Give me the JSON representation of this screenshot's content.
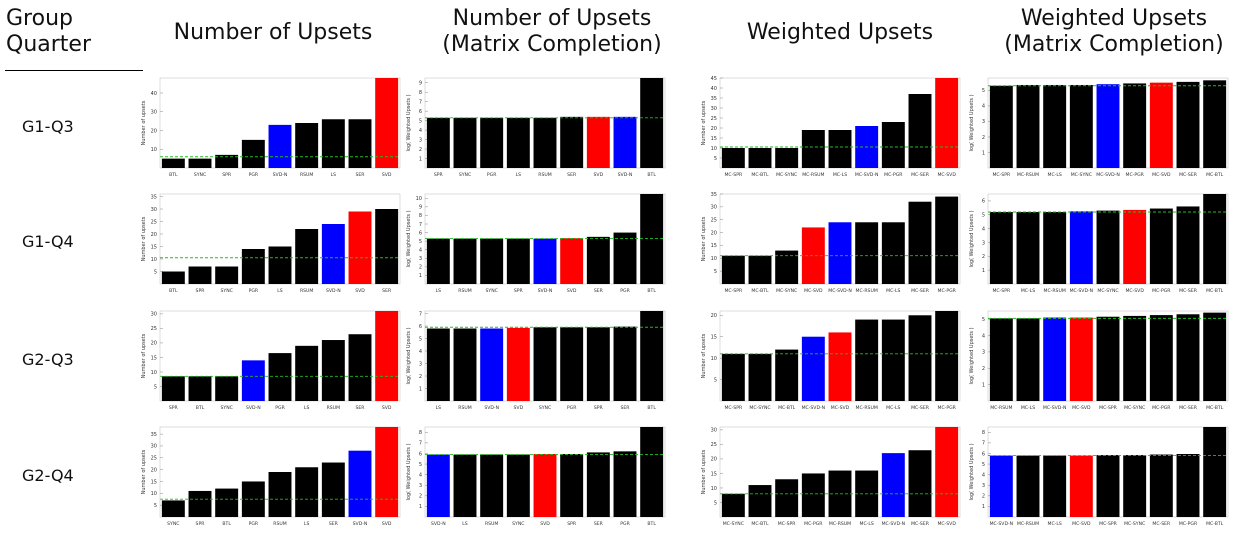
{
  "header": {
    "corner_line1": "Group",
    "corner_line2": "Quarter",
    "columns": [
      {
        "line1": "Number of Upsets",
        "line2": ""
      },
      {
        "line1": "Number of Upsets",
        "line2": "(Matrix Completion)"
      },
      {
        "line1": "Weighted Upsets",
        "line2": ""
      },
      {
        "line1": "Weighted Upsets",
        "line2": "(Matrix Completion)"
      }
    ]
  },
  "rows": [
    "G1-Q3",
    "G1-Q4",
    "G2-Q3",
    "G2-Q4"
  ],
  "colors": {
    "bar": "#000000",
    "highlight_red": "#ff0000",
    "highlight_blue": "#0000ff",
    "reference_line": "#22bb22"
  },
  "chart_data": [
    {
      "type": "bar",
      "row": "G1-Q3",
      "col": 0,
      "ylabel": "Number of upsets",
      "ylim": [
        0,
        48
      ],
      "yticks": [
        10,
        20,
        30,
        40
      ],
      "ref": 6,
      "categories": [
        "BTL",
        "SYNC",
        "SPR",
        "PGR",
        "SVD-N",
        "RSUM",
        "LS",
        "SER",
        "SVD"
      ],
      "values": [
        5,
        5,
        7,
        15,
        23,
        24,
        26,
        26,
        48
      ],
      "colors": [
        "k",
        "k",
        "k",
        "k",
        "b",
        "k",
        "k",
        "k",
        "r"
      ]
    },
    {
      "type": "bar",
      "row": "G1-Q3",
      "col": 1,
      "ylabel": "log( Weighted Upsets )",
      "ylim": [
        0,
        9.5
      ],
      "yticks": [
        1,
        2,
        3,
        4,
        5,
        6,
        7,
        8,
        9
      ],
      "ref": 5.3,
      "categories": [
        "SPR",
        "SYNC",
        "PGR",
        "LS",
        "RSUM",
        "SER",
        "SVD",
        "SVD-N",
        "BTL"
      ],
      "values": [
        5.3,
        5.3,
        5.3,
        5.3,
        5.3,
        5.4,
        5.4,
        5.4,
        9.5
      ],
      "colors": [
        "k",
        "k",
        "k",
        "k",
        "k",
        "k",
        "r",
        "b",
        "k"
      ]
    },
    {
      "type": "bar",
      "row": "G1-Q3",
      "col": 2,
      "ylabel": "Number of upsets",
      "ylim": [
        0,
        45
      ],
      "yticks": [
        5,
        10,
        15,
        20,
        25,
        30,
        35,
        40,
        45
      ],
      "ref": 10.5,
      "categories": [
        "MC-SPR",
        "MC-BTL",
        "MC-SYNC",
        "MC-RSUM",
        "MC-LS",
        "MC-SVD-N",
        "MC-PGR",
        "MC-SER",
        "MC-SVD"
      ],
      "values": [
        10,
        10,
        10,
        19,
        19,
        21,
        23,
        37,
        45
      ],
      "colors": [
        "k",
        "k",
        "k",
        "k",
        "k",
        "b",
        "k",
        "k",
        "r"
      ]
    },
    {
      "type": "bar",
      "row": "G1-Q3",
      "col": 3,
      "ylabel": "log( Weighted Upsets )",
      "ylim": [
        0,
        5.8
      ],
      "yticks": [
        1,
        2,
        3,
        4,
        5
      ],
      "ref": 5.3,
      "categories": [
        "MC-SPR",
        "MC-RSUM",
        "MC-LS",
        "MC-SYNC",
        "MC-SVD-N",
        "MC-PGR",
        "MC-SVD",
        "MC-SER",
        "MC-BTL"
      ],
      "values": [
        5.3,
        5.35,
        5.35,
        5.35,
        5.4,
        5.45,
        5.5,
        5.55,
        5.65
      ],
      "colors": [
        "k",
        "k",
        "k",
        "k",
        "b",
        "k",
        "r",
        "k",
        "k"
      ]
    },
    {
      "type": "bar",
      "row": "G1-Q4",
      "col": 0,
      "ylabel": "Number of upsets",
      "ylim": [
        0,
        36
      ],
      "yticks": [
        5,
        10,
        15,
        20,
        25,
        30,
        35
      ],
      "ref": 10.5,
      "categories": [
        "BTL",
        "SPR",
        "SYNC",
        "PGR",
        "LS",
        "RSUM",
        "SVD-N",
        "SVD",
        "SER"
      ],
      "values": [
        5,
        7,
        7,
        14,
        15,
        22,
        24,
        29,
        30
      ],
      "colors": [
        "k",
        "k",
        "k",
        "k",
        "k",
        "k",
        "b",
        "r",
        "k"
      ]
    },
    {
      "type": "bar",
      "row": "G1-Q4",
      "col": 1,
      "ylabel": "log( Weighted Upsets )",
      "ylim": [
        0,
        10.5
      ],
      "yticks": [
        1,
        2,
        3,
        4,
        5,
        6,
        7,
        8,
        9,
        10
      ],
      "ref": 5.3,
      "categories": [
        "LS",
        "RSUM",
        "SYNC",
        "SPR",
        "SVD-N",
        "SVD",
        "SER",
        "PGR",
        "BTL"
      ],
      "values": [
        5.3,
        5.3,
        5.3,
        5.3,
        5.3,
        5.35,
        5.5,
        6,
        10.5
      ],
      "colors": [
        "k",
        "k",
        "k",
        "k",
        "b",
        "r",
        "k",
        "k",
        "k"
      ]
    },
    {
      "type": "bar",
      "row": "G1-Q4",
      "col": 2,
      "ylabel": "Number of upsets",
      "ylim": [
        0,
        35
      ],
      "yticks": [
        5,
        10,
        15,
        20,
        25,
        30,
        35
      ],
      "ref": 11,
      "categories": [
        "MC-SPR",
        "MC-BTL",
        "MC-SYNC",
        "MC-SVD",
        "MC-SVD-N",
        "MC-RSUM",
        "MC-LS",
        "MC-SER",
        "MC-PGR"
      ],
      "values": [
        11,
        11,
        13,
        22,
        24,
        24,
        24,
        32,
        34
      ],
      "colors": [
        "k",
        "k",
        "k",
        "r",
        "b",
        "k",
        "k",
        "k",
        "k"
      ]
    },
    {
      "type": "bar",
      "row": "G1-Q4",
      "col": 3,
      "ylabel": "log( Weighted Upsets )",
      "ylim": [
        0,
        6.5
      ],
      "yticks": [
        1,
        2,
        3,
        4,
        5,
        6
      ],
      "ref": 5.2,
      "categories": [
        "MC-SPR",
        "MC-LS",
        "MC-RSUM",
        "MC-SVD-N",
        "MC-SYNC",
        "MC-SVD",
        "MC-PGR",
        "MC-SER",
        "MC-BTL"
      ],
      "values": [
        5.2,
        5.2,
        5.2,
        5.25,
        5.3,
        5.35,
        5.45,
        5.6,
        6.5
      ],
      "colors": [
        "k",
        "k",
        "k",
        "b",
        "k",
        "r",
        "k",
        "k",
        "k"
      ]
    },
    {
      "type": "bar",
      "row": "G2-Q3",
      "col": 0,
      "ylabel": "Number of upsets",
      "ylim": [
        0,
        31
      ],
      "yticks": [
        5,
        10,
        15,
        20,
        25,
        30
      ],
      "ref": 8.5,
      "categories": [
        "SPR",
        "BTL",
        "SYNC",
        "SVD-N",
        "PGR",
        "LS",
        "RSUM",
        "SER",
        "SVD"
      ],
      "values": [
        8.5,
        8.5,
        8.5,
        14,
        16.5,
        19,
        21,
        23,
        31
      ],
      "colors": [
        "k",
        "k",
        "k",
        "b",
        "k",
        "k",
        "k",
        "k",
        "r"
      ]
    },
    {
      "type": "bar",
      "row": "G2-Q3",
      "col": 1,
      "ylabel": "log( Weighted Upsets )",
      "ylim": [
        0,
        7.2
      ],
      "yticks": [
        1,
        2,
        3,
        4,
        5,
        6,
        7
      ],
      "ref": 5.9,
      "categories": [
        "LS",
        "RSUM",
        "SVD-N",
        "SVD",
        "SYNC",
        "PGR",
        "SPR",
        "SER",
        "BTL"
      ],
      "values": [
        5.8,
        5.8,
        5.8,
        5.85,
        5.9,
        5.9,
        5.9,
        5.95,
        7.2
      ],
      "colors": [
        "k",
        "k",
        "b",
        "r",
        "k",
        "k",
        "k",
        "k",
        "k"
      ]
    },
    {
      "type": "bar",
      "row": "G2-Q3",
      "col": 2,
      "ylabel": "Number of upsets",
      "ylim": [
        0,
        21
      ],
      "yticks": [
        5,
        10,
        15,
        20
      ],
      "ref": 11,
      "categories": [
        "MC-SPR",
        "MC-SYNC",
        "MC-BTL",
        "MC-SVD-N",
        "MC-SVD",
        "MC-RSUM",
        "MC-LS",
        "MC-SER",
        "MC-PGR"
      ],
      "values": [
        11,
        11,
        12,
        15,
        16,
        19,
        19,
        20,
        21
      ],
      "colors": [
        "k",
        "k",
        "k",
        "b",
        "r",
        "k",
        "k",
        "k",
        "k"
      ]
    },
    {
      "type": "bar",
      "row": "G2-Q3",
      "col": 3,
      "ylabel": "log( Weighted Upsets )",
      "ylim": [
        0,
        5.5
      ],
      "yticks": [
        1,
        2,
        3,
        4,
        5
      ],
      "ref": 5.05,
      "categories": [
        "MC-RSUM",
        "MC-LS",
        "MC-SVD-N",
        "MC-SVD",
        "MC-SPR",
        "MC-SYNC",
        "MC-PGR",
        "MC-SER",
        "MC-BTL"
      ],
      "values": [
        5.05,
        5.05,
        5.1,
        5.1,
        5.15,
        5.2,
        5.25,
        5.3,
        5.4
      ],
      "colors": [
        "k",
        "k",
        "b",
        "r",
        "k",
        "k",
        "k",
        "k",
        "k"
      ]
    },
    {
      "type": "bar",
      "row": "G2-Q4",
      "col": 0,
      "ylabel": "Number of upsets",
      "ylim": [
        0,
        38
      ],
      "yticks": [
        5,
        10,
        15,
        20,
        25,
        30,
        35
      ],
      "ref": 7.5,
      "categories": [
        "SYNC",
        "SPR",
        "BTL",
        "PGR",
        "RSUM",
        "LS",
        "SER",
        "SVD-N",
        "SVD"
      ],
      "values": [
        7,
        11,
        12,
        15,
        19,
        21,
        23,
        28,
        38
      ],
      "colors": [
        "k",
        "k",
        "k",
        "k",
        "k",
        "k",
        "k",
        "b",
        "r"
      ]
    },
    {
      "type": "bar",
      "row": "G2-Q4",
      "col": 1,
      "ylabel": "log( Weighted Upsets )",
      "ylim": [
        0,
        8.5
      ],
      "yticks": [
        1,
        2,
        3,
        4,
        5,
        6,
        7,
        8
      ],
      "ref": 5.9,
      "categories": [
        "SVD-N",
        "LS",
        "RSUM",
        "SYNC",
        "SVD",
        "SPR",
        "SER",
        "PGR",
        "BTL"
      ],
      "values": [
        5.9,
        5.9,
        5.9,
        5.9,
        5.95,
        5.95,
        6.1,
        6.2,
        8.5
      ],
      "colors": [
        "b",
        "k",
        "k",
        "k",
        "r",
        "k",
        "k",
        "k",
        "k"
      ]
    },
    {
      "type": "bar",
      "row": "G2-Q4",
      "col": 2,
      "ylabel": "Number of upsets",
      "ylim": [
        0,
        31
      ],
      "yticks": [
        5,
        10,
        15,
        20,
        25,
        30
      ],
      "ref": 8,
      "categories": [
        "MC-SYNC",
        "MC-BTL",
        "MC-SPR",
        "MC-PGR",
        "MC-RSUM",
        "MC-LS",
        "MC-SVD-N",
        "MC-SER",
        "MC-SVD"
      ],
      "values": [
        8,
        11,
        13,
        15,
        16,
        16,
        22,
        23,
        31
      ],
      "colors": [
        "k",
        "k",
        "k",
        "k",
        "k",
        "k",
        "b",
        "k",
        "r"
      ]
    },
    {
      "type": "bar",
      "row": "G2-Q4",
      "col": 3,
      "ylabel": "log( Weighted Upsets )",
      "ylim": [
        0,
        8.5
      ],
      "yticks": [
        1,
        2,
        3,
        4,
        5,
        6,
        7,
        8
      ],
      "ref": 5.8,
      "categories": [
        "MC-SVD-N",
        "MC-RSUM",
        "MC-LS",
        "MC-SVD",
        "MC-SPR",
        "MC-SYNC",
        "MC-SER",
        "MC-PGR",
        "MC-BTL"
      ],
      "values": [
        5.8,
        5.8,
        5.8,
        5.8,
        5.85,
        5.85,
        5.9,
        5.95,
        8.5
      ],
      "colors": [
        "b",
        "k",
        "k",
        "r",
        "k",
        "k",
        "k",
        "k",
        "k"
      ]
    }
  ]
}
